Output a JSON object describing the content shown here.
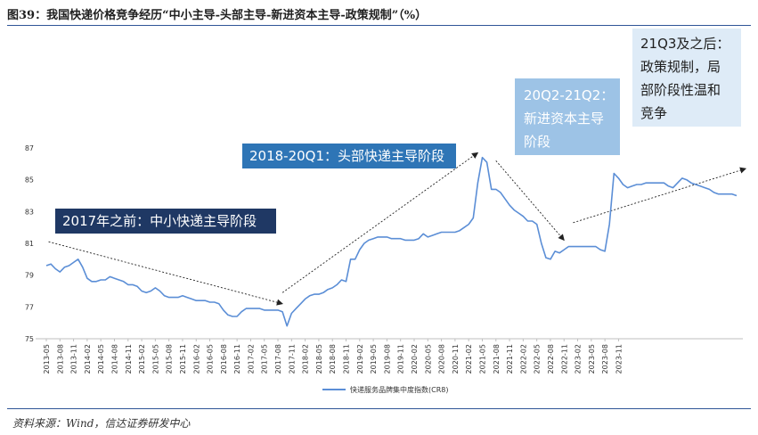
{
  "title": "图39：我国快递价格竞争经历“中小主导-头部主导-新进资本主导-政策规制”（%）",
  "source": "资料来源：Wind，信达证券研发中心",
  "colors": {
    "line": "#5b8ed6",
    "axis": "#bfbfbf",
    "box1": "#1f3864",
    "box2": "#2e75b6",
    "box3": "#9dc3e6",
    "box4": "#deebf7",
    "rule": "#2f5597"
  },
  "annotations": [
    {
      "id": "pre2017",
      "text": "2017年之前：中小快递主导阶段"
    },
    {
      "id": "2018-20q1",
      "text": "2018-20Q1：头部快递主导阶段"
    },
    {
      "id": "20q2-21q2",
      "text": "20Q2-21Q2：\n新进资本主导\n阶段"
    },
    {
      "id": "21q3",
      "text": "21Q3及之后：\n政策规制，局\n部阶段性温和\n竞争"
    }
  ],
  "chart_data": {
    "type": "line",
    "title": "我国快递价格竞争经历“中小主导-头部主导-新进资本主导-政策规制”（%）",
    "xlabel": "",
    "ylabel": "",
    "ylim": [
      75,
      87
    ],
    "yticks": [
      75,
      77,
      79,
      81,
      83,
      85,
      87
    ],
    "legend": {
      "position": "bottom-center",
      "label": "快递服务品牌集中度指数(CR8)"
    },
    "x_tick_labels": [
      "2013-05",
      "2013-08",
      "2013-11",
      "2014-02",
      "2014-05",
      "2014-08",
      "2014-11",
      "2015-02",
      "2015-05",
      "2015-08",
      "2015-11",
      "2016-02",
      "2016-05",
      "2016-08",
      "2016-11",
      "2017-02",
      "2017-05",
      "2017-08",
      "2017-11",
      "2018-02",
      "2018-05",
      "2018-08",
      "2018-11",
      "2019-02",
      "2019-05",
      "2019-08",
      "2019-11",
      "2020-02",
      "2020-05",
      "2020-08",
      "2020-11",
      "2021-02",
      "2021-05",
      "2021-08",
      "2021-11",
      "2022-02",
      "2022-05",
      "2022-08",
      "2022-11",
      "2023-02",
      "2023-05",
      "2023-08",
      "2023-11"
    ],
    "x_start": "2013-05",
    "series": [
      {
        "name": "快递服务品牌集中度指数(CR8)",
        "values": [
          79.6,
          79.7,
          79.4,
          79.2,
          79.5,
          79.6,
          79.8,
          80.0,
          79.5,
          78.8,
          78.6,
          78.6,
          78.7,
          78.7,
          78.9,
          78.8,
          78.7,
          78.6,
          78.4,
          78.4,
          78.3,
          78.0,
          77.9,
          78.0,
          78.2,
          78.0,
          77.7,
          77.6,
          77.6,
          77.6,
          77.7,
          77.6,
          77.5,
          77.4,
          77.4,
          77.4,
          77.3,
          77.3,
          77.2,
          76.8,
          76.5,
          76.4,
          76.4,
          76.7,
          76.9,
          76.9,
          76.9,
          76.9,
          76.8,
          76.8,
          76.8,
          76.8,
          76.7,
          75.8,
          76.6,
          76.9,
          77.2,
          77.5,
          77.7,
          77.8,
          77.8,
          77.9,
          78.1,
          78.2,
          78.4,
          78.7,
          78.6,
          80.0,
          80.0,
          80.6,
          81.0,
          81.2,
          81.3,
          81.4,
          81.4,
          81.4,
          81.3,
          81.3,
          81.3,
          81.2,
          81.2,
          81.2,
          81.3,
          81.6,
          81.4,
          81.5,
          81.6,
          81.7,
          81.7,
          81.7,
          81.7,
          81.8,
          82.0,
          82.2,
          82.6,
          84.8,
          86.4,
          86.1,
          84.4,
          84.4,
          84.2,
          83.8,
          83.4,
          83.1,
          82.9,
          82.7,
          82.4,
          82.4,
          82.2,
          81.0,
          80.1,
          80.0,
          80.5,
          80.4,
          80.6,
          80.8,
          80.8,
          80.8,
          80.8,
          80.8,
          80.8,
          80.8,
          80.6,
          80.5,
          82.2,
          85.4,
          85.1,
          84.7,
          84.5,
          84.6,
          84.7,
          84.7,
          84.8,
          84.8,
          84.8,
          84.8,
          84.8,
          84.6,
          84.5,
          84.8,
          85.1,
          85.0,
          84.8,
          84.7,
          84.6,
          84.5,
          84.4,
          84.2,
          84.1,
          84.1,
          84.1,
          84.1,
          84.0
        ]
      }
    ]
  }
}
